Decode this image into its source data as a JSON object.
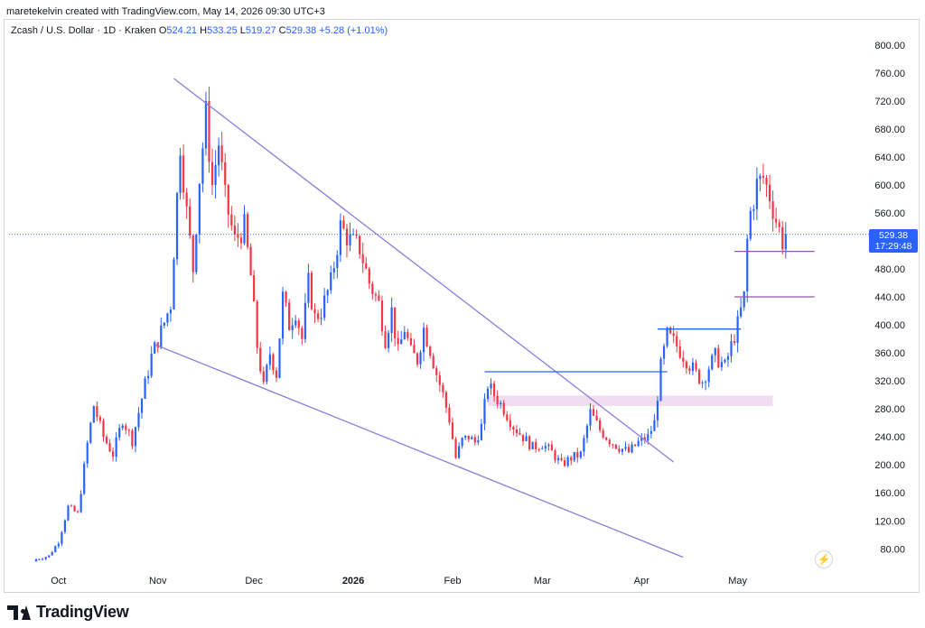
{
  "header": {
    "created_by": "maretekelvin created with TradingView.com, May 14, 2026 09:30 UTC+3"
  },
  "legend": {
    "symbol": "Zcash / U.S. Dollar · 1D · Kraken",
    "o_label": "O",
    "o": "524.21",
    "h_label": "H",
    "h": "533.25",
    "l_label": "L",
    "l": "519.27",
    "c_label": "C",
    "c": "529.38",
    "change": "+5.28 (+1.01%)"
  },
  "price_label": {
    "price": "529.38",
    "countdown": "17:29:48"
  },
  "footer": {
    "brand": "TradingView"
  },
  "colors": {
    "up": "#2962ff",
    "down": "#f23645",
    "trendline": "#8a7fd9",
    "level": "#9c4fb0",
    "zone": "#f0def0"
  },
  "icons": {
    "logo": "tradingview-logo-icon",
    "bolt": "lightning-icon"
  },
  "chart_data": {
    "type": "candlestick",
    "y_axis": {
      "ticks": [
        80,
        120,
        160,
        200,
        240,
        280,
        320,
        360,
        400,
        440,
        480,
        520,
        560,
        600,
        640,
        680,
        720,
        760,
        800
      ],
      "ylim": [
        52,
        810
      ],
      "side": "right"
    },
    "x_axis": {
      "labels": [
        {
          "label": "Oct",
          "day": 0
        },
        {
          "label": "Nov",
          "day": 31
        },
        {
          "label": "Dec",
          "day": 61
        },
        {
          "label": "2026",
          "day": 92
        },
        {
          "label": "Feb",
          "day": 123
        },
        {
          "label": "Mar",
          "day": 151
        },
        {
          "label": "Apr",
          "day": 182
        },
        {
          "label": "May",
          "day": 212
        }
      ],
      "xlim": [
        -7,
        253
      ]
    },
    "anchors": [
      [
        -7,
        65
      ],
      [
        -3,
        70
      ],
      [
        0,
        90
      ],
      [
        3,
        140
      ],
      [
        6,
        130
      ],
      [
        9,
        230
      ],
      [
        11,
        285
      ],
      [
        14,
        240
      ],
      [
        17,
        215
      ],
      [
        20,
        265
      ],
      [
        23,
        235
      ],
      [
        26,
        295
      ],
      [
        29,
        355
      ],
      [
        32,
        390
      ],
      [
        35,
        430
      ],
      [
        38,
        660
      ],
      [
        40,
        560
      ],
      [
        42,
        480
      ],
      [
        44,
        610
      ],
      [
        46,
        700
      ],
      [
        48,
        600
      ],
      [
        50,
        660
      ],
      [
        52,
        580
      ],
      [
        55,
        520
      ],
      [
        58,
        540
      ],
      [
        60,
        470
      ],
      [
        62,
        370
      ],
      [
        64,
        310
      ],
      [
        66,
        360
      ],
      [
        68,
        330
      ],
      [
        70,
        440
      ],
      [
        72,
        400
      ],
      [
        74,
        420
      ],
      [
        76,
        380
      ],
      [
        78,
        460
      ],
      [
        80,
        410
      ],
      [
        82,
        420
      ],
      [
        85,
        460
      ],
      [
        88,
        540
      ],
      [
        91,
        520
      ],
      [
        94,
        510
      ],
      [
        97,
        460
      ],
      [
        100,
        430
      ],
      [
        102,
        380
      ],
      [
        104,
        420
      ],
      [
        106,
        360
      ],
      [
        108,
        395
      ],
      [
        110,
        360
      ],
      [
        112,
        350
      ],
      [
        114,
        395
      ],
      [
        116,
        365
      ],
      [
        118,
        330
      ],
      [
        120,
        300
      ],
      [
        122,
        265
      ],
      [
        124,
        210
      ],
      [
        126,
        235
      ],
      [
        128,
        240
      ],
      [
        130,
        232
      ],
      [
        132,
        255
      ],
      [
        134,
        315
      ],
      [
        136,
        300
      ],
      [
        139,
        280
      ],
      [
        142,
        255
      ],
      [
        145,
        240
      ],
      [
        148,
        225
      ],
      [
        151,
        230
      ],
      [
        154,
        218
      ],
      [
        157,
        200
      ],
      [
        160,
        210
      ],
      [
        163,
        215
      ],
      [
        166,
        275
      ],
      [
        169,
        250
      ],
      [
        172,
        235
      ],
      [
        175,
        225
      ],
      [
        178,
        218
      ],
      [
        181,
        232
      ],
      [
        184,
        240
      ],
      [
        186,
        260
      ],
      [
        188,
        340
      ],
      [
        190,
        385
      ],
      [
        193,
        370
      ],
      [
        196,
        350
      ],
      [
        199,
        330
      ],
      [
        201,
        320
      ],
      [
        203,
        340
      ],
      [
        205,
        355
      ],
      [
        208,
        340
      ],
      [
        210,
        370
      ],
      [
        212,
        400
      ],
      [
        214,
        440
      ],
      [
        215,
        520
      ],
      [
        216,
        560
      ],
      [
        218,
        600
      ],
      [
        220,
        610
      ],
      [
        222,
        585
      ],
      [
        224,
        550
      ],
      [
        226,
        520
      ],
      [
        227,
        529
      ]
    ],
    "open_first": 62,
    "trendlines": [
      {
        "from": [
          36,
          752
        ],
        "to": [
          192,
          204
        ]
      },
      {
        "from": [
          30,
          372
        ],
        "to": [
          195,
          68
        ]
      }
    ],
    "horizontal_levels": [
      {
        "from_day": 133,
        "to_day": 190,
        "price": 333
      },
      {
        "from_day": 187,
        "to_day": 213,
        "price": 394
      },
      {
        "from_day": 211,
        "to_day": 236,
        "price": 505
      },
      {
        "from_day": 211,
        "to_day": 236,
        "price": 440
      }
    ],
    "zone": {
      "from_day": 134,
      "to_day": 223,
      "low": 284,
      "high": 299
    },
    "last_price": 529.38,
    "last_price_line": true
  }
}
